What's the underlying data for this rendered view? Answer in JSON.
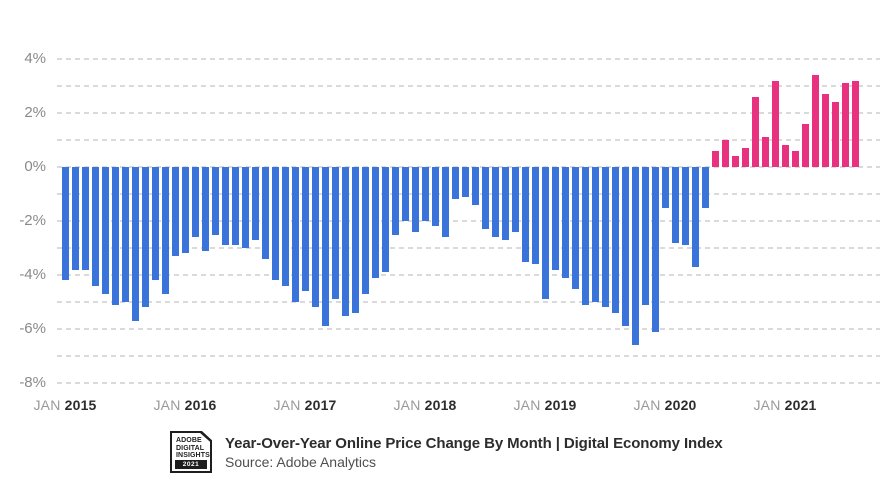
{
  "footer": {
    "title": "Year-Over-Year Online Price Change By Month | Digital Economy Index",
    "source": "Source: Adobe Analytics"
  },
  "logo": {
    "lines": [
      "ADOBE",
      "DIGITAL",
      "INSIGHTS"
    ],
    "badge": "2021"
  },
  "chart_data": {
    "type": "bar",
    "title": "Year-Over-Year Online Price Change By Month | Digital Economy Index",
    "source": "Source: Adobe Analytics",
    "unit": "%",
    "ylim": [
      -8,
      4
    ],
    "grid": "dashed horizontal lines every 1%, labels every 2%",
    "legend_position": "none",
    "y_tick_labels": [
      "4%",
      "2%",
      "0%",
      "-2%",
      "-4%",
      "-6%",
      "-8%"
    ],
    "x_tick_labels": [
      {
        "month": "JAN",
        "year": "2015"
      },
      {
        "month": "JAN",
        "year": "2016"
      },
      {
        "month": "JAN",
        "year": "2017"
      },
      {
        "month": "JAN",
        "year": "2018"
      },
      {
        "month": "JAN",
        "year": "2019"
      },
      {
        "month": "JAN",
        "year": "2020"
      },
      {
        "month": "JAN",
        "year": "2021"
      }
    ],
    "colors": {
      "negative_bar": "#3a73d9",
      "positive_bar": "#e8327f",
      "gridline": "#dadada"
    },
    "series": [
      {
        "name": "YoY online price change by month",
        "points": [
          {
            "month": "Jan 2015",
            "value": -4.2
          },
          {
            "month": "Feb 2015",
            "value": -3.8
          },
          {
            "month": "Mar 2015",
            "value": -3.8
          },
          {
            "month": "Apr 2015",
            "value": -4.4
          },
          {
            "month": "May 2015",
            "value": -4.7
          },
          {
            "month": "Jun 2015",
            "value": -5.1
          },
          {
            "month": "Jul 2015",
            "value": -5.0
          },
          {
            "month": "Aug 2015",
            "value": -5.7
          },
          {
            "month": "Sep 2015",
            "value": -5.2
          },
          {
            "month": "Oct 2015",
            "value": -4.2
          },
          {
            "month": "Nov 2015",
            "value": -4.7
          },
          {
            "month": "Dec 2015",
            "value": -3.3
          },
          {
            "month": "Jan 2016",
            "value": -3.2
          },
          {
            "month": "Feb 2016",
            "value": -2.6
          },
          {
            "month": "Mar 2016",
            "value": -3.1
          },
          {
            "month": "Apr 2016",
            "value": -2.5
          },
          {
            "month": "May 2016",
            "value": -2.9
          },
          {
            "month": "Jun 2016",
            "value": -2.9
          },
          {
            "month": "Jul 2016",
            "value": -3.0
          },
          {
            "month": "Aug 2016",
            "value": -2.7
          },
          {
            "month": "Sep 2016",
            "value": -3.4
          },
          {
            "month": "Oct 2016",
            "value": -4.2
          },
          {
            "month": "Nov 2016",
            "value": -4.4
          },
          {
            "month": "Dec 2016",
            "value": -5.0
          },
          {
            "month": "Jan 2017",
            "value": -4.6
          },
          {
            "month": "Feb 2017",
            "value": -5.2
          },
          {
            "month": "Mar 2017",
            "value": -5.9
          },
          {
            "month": "Apr 2017",
            "value": -4.9
          },
          {
            "month": "May 2017",
            "value": -5.5
          },
          {
            "month": "Jun 2017",
            "value": -5.4
          },
          {
            "month": "Jul 2017",
            "value": -4.7
          },
          {
            "month": "Aug 2017",
            "value": -4.1
          },
          {
            "month": "Sep 2017",
            "value": -3.9
          },
          {
            "month": "Oct 2017",
            "value": -2.5
          },
          {
            "month": "Nov 2017",
            "value": -2.0
          },
          {
            "month": "Dec 2017",
            "value": -2.4
          },
          {
            "month": "Jan 2018",
            "value": -2.0
          },
          {
            "month": "Feb 2018",
            "value": -2.2
          },
          {
            "month": "Mar 2018",
            "value": -2.6
          },
          {
            "month": "Apr 2018",
            "value": -1.2
          },
          {
            "month": "May 2018",
            "value": -1.1
          },
          {
            "month": "Jun 2018",
            "value": -1.4
          },
          {
            "month": "Jul 2018",
            "value": -2.3
          },
          {
            "month": "Aug 2018",
            "value": -2.6
          },
          {
            "month": "Sep 2018",
            "value": -2.7
          },
          {
            "month": "Oct 2018",
            "value": -2.4
          },
          {
            "month": "Nov 2018",
            "value": -3.5
          },
          {
            "month": "Dec 2018",
            "value": -3.6
          },
          {
            "month": "Jan 2019",
            "value": -4.9
          },
          {
            "month": "Feb 2019",
            "value": -3.8
          },
          {
            "month": "Mar 2019",
            "value": -4.1
          },
          {
            "month": "Apr 2019",
            "value": -4.5
          },
          {
            "month": "May 2019",
            "value": -5.1
          },
          {
            "month": "Jun 2019",
            "value": -5.0
          },
          {
            "month": "Jul 2019",
            "value": -5.2
          },
          {
            "month": "Aug 2019",
            "value": -5.4
          },
          {
            "month": "Sep 2019",
            "value": -5.9
          },
          {
            "month": "Oct 2019",
            "value": -6.6
          },
          {
            "month": "Nov 2019",
            "value": -5.1
          },
          {
            "month": "Dec 2019",
            "value": -6.1
          },
          {
            "month": "Jan 2020",
            "value": -1.5
          },
          {
            "month": "Feb 2020",
            "value": -2.8
          },
          {
            "month": "Mar 2020",
            "value": -2.9
          },
          {
            "month": "Apr 2020",
            "value": -3.7
          },
          {
            "month": "May 2020",
            "value": -1.5
          },
          {
            "month": "Jun 2020",
            "value": 0.6
          },
          {
            "month": "Jul 2020",
            "value": 1.0
          },
          {
            "month": "Aug 2020",
            "value": 0.4
          },
          {
            "month": "Sep 2020",
            "value": 0.7
          },
          {
            "month": "Oct 2020",
            "value": 2.6
          },
          {
            "month": "Nov 2020",
            "value": 1.1
          },
          {
            "month": "Dec 2020",
            "value": 3.2
          },
          {
            "month": "Jan 2021",
            "value": 0.8
          },
          {
            "month": "Feb 2021",
            "value": 0.6
          },
          {
            "month": "Mar 2021",
            "value": 1.6
          },
          {
            "month": "Apr 2021",
            "value": 3.4
          },
          {
            "month": "May 2021",
            "value": 2.7
          },
          {
            "month": "Jun 2021",
            "value": 2.4
          },
          {
            "month": "Jul 2021",
            "value": 3.1
          },
          {
            "month": "Aug 2021",
            "value": 3.2
          }
        ]
      }
    ]
  }
}
